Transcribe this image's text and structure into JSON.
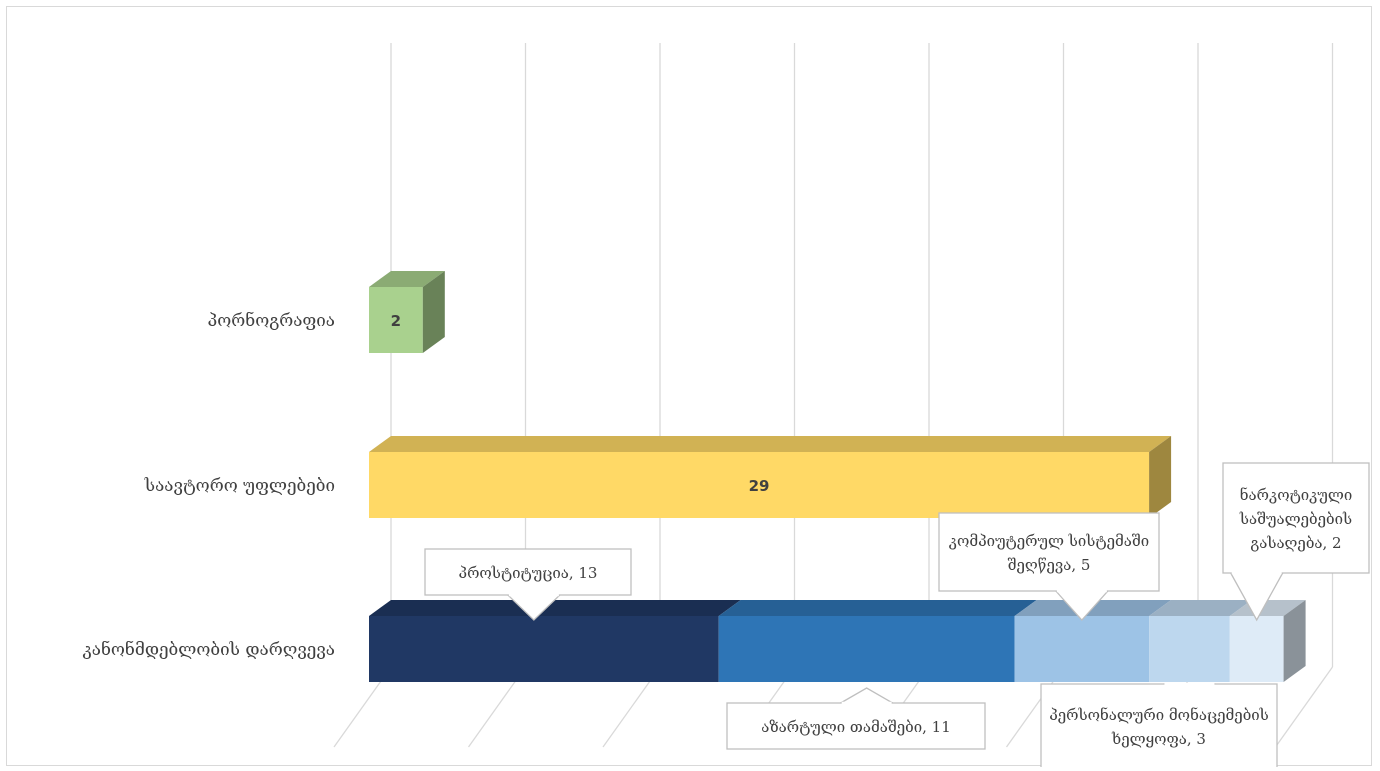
{
  "chart_data": {
    "type": "bar",
    "orientation": "horizontal",
    "stacked": true,
    "style": "3d",
    "grid": true,
    "legend": "none",
    "xlim": [
      0,
      35
    ],
    "categories": [
      "პორნოგრაფია",
      "საავტორო უფლებები",
      "კანონმდებლობის დარღვევა"
    ],
    "bars": [
      {
        "category": "პორნოგრაფია",
        "segments": [
          {
            "value": 2,
            "label": "2",
            "color": "#a9d18e"
          }
        ]
      },
      {
        "category": "საავტორო უფლებები",
        "segments": [
          {
            "value": 29,
            "label": "29",
            "color": "#ffd966"
          }
        ]
      },
      {
        "category": "კანონმდებლობის დარღვევა",
        "segments": [
          {
            "value": 13,
            "label": "პროსტიტუცია, 13",
            "color": "#203864"
          },
          {
            "value": 11,
            "label": "აზარტული თამაშები, 11",
            "color": "#2e75b6"
          },
          {
            "value": 5,
            "label": "კომპიუტერულ სისტემაში შეღწევა, 5",
            "color": "#9dc3e6"
          },
          {
            "value": 3,
            "label": "პერსონალური მონაცემების ხელყოფა, 3",
            "color": "#bdd7ee"
          },
          {
            "value": 2,
            "label": "ნარკოტიკული საშუალებების გასაღება, 2",
            "color": "#deebf7"
          }
        ]
      }
    ]
  }
}
